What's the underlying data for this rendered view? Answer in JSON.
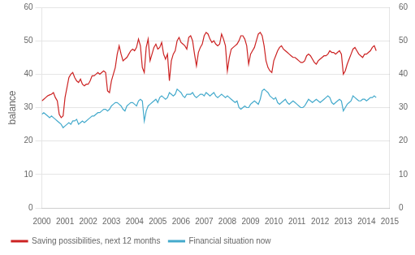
{
  "chart_data": {
    "type": "line",
    "ylabel": "balance",
    "x": [
      2000,
      2000.0833333333333,
      2000.1666666666667,
      2000.25,
      2000.3333333333333,
      2000.4166666666667,
      2000.5,
      2000.5833333333333,
      2000.6666666666667,
      2000.75,
      2000.8333333333333,
      2000.9166666666667,
      2001,
      2001.0833333333333,
      2001.1666666666667,
      2001.25,
      2001.3333333333333,
      2001.4166666666667,
      2001.5,
      2001.5833333333333,
      2001.6666666666667,
      2001.75,
      2001.8333333333333,
      2001.9166666666667,
      2002,
      2002.0833333333333,
      2002.1666666666667,
      2002.25,
      2002.3333333333333,
      2002.4166666666667,
      2002.5,
      2002.5833333333333,
      2002.6666666666667,
      2002.75,
      2002.8333333333333,
      2002.9166666666667,
      2003,
      2003.0833333333333,
      2003.1666666666667,
      2003.25,
      2003.3333333333333,
      2003.4166666666667,
      2003.5,
      2003.5833333333333,
      2003.6666666666667,
      2003.75,
      2003.8333333333333,
      2003.9166666666667,
      2004,
      2004.0833333333333,
      2004.1666666666667,
      2004.25,
      2004.3333333333333,
      2004.4166666666667,
      2004.5,
      2004.5833333333333,
      2004.6666666666667,
      2004.75,
      2004.8333333333333,
      2004.9166666666667,
      2005,
      2005.0833333333333,
      2005.1666666666667,
      2005.25,
      2005.3333333333333,
      2005.4166666666667,
      2005.5,
      2005.5833333333333,
      2005.6666666666667,
      2005.75,
      2005.8333333333333,
      2005.9166666666667,
      2006,
      2006.0833333333333,
      2006.1666666666667,
      2006.25,
      2006.3333333333333,
      2006.4166666666667,
      2006.5,
      2006.5833333333333,
      2006.6666666666667,
      2006.75,
      2006.8333333333333,
      2006.9166666666667,
      2007,
      2007.0833333333333,
      2007.1666666666667,
      2007.25,
      2007.3333333333333,
      2007.4166666666667,
      2007.5,
      2007.5833333333333,
      2007.6666666666667,
      2007.75,
      2007.8333333333333,
      2007.9166666666667,
      2008,
      2008.0833333333333,
      2008.1666666666667,
      2008.25,
      2008.3333333333333,
      2008.4166666666667,
      2008.5,
      2008.5833333333333,
      2008.6666666666667,
      2008.75,
      2008.8333333333333,
      2008.9166666666667,
      2009,
      2009.0833333333333,
      2009.1666666666667,
      2009.25,
      2009.3333333333333,
      2009.4166666666667,
      2009.5,
      2009.5833333333333,
      2009.6666666666667,
      2009.75,
      2009.8333333333333,
      2009.9166666666667,
      2010,
      2010.0833333333333,
      2010.1666666666667,
      2010.25,
      2010.3333333333333,
      2010.4166666666667,
      2010.5,
      2010.5833333333333,
      2010.6666666666667,
      2010.75,
      2010.8333333333333,
      2010.9166666666667,
      2011,
      2011.0833333333333,
      2011.1666666666667,
      2011.25,
      2011.3333333333333,
      2011.4166666666667,
      2011.5,
      2011.5833333333333,
      2011.6666666666667,
      2011.75,
      2011.8333333333333,
      2011.9166666666667,
      2012,
      2012.0833333333333,
      2012.1666666666667,
      2012.25,
      2012.3333333333333,
      2012.4166666666667,
      2012.5,
      2012.5833333333333,
      2012.6666666666667,
      2012.75,
      2012.8333333333333,
      2012.9166666666667,
      2013,
      2013.0833333333333,
      2013.1666666666667,
      2013.25,
      2013.3333333333333,
      2013.4166666666667,
      2013.5,
      2013.5833333333333,
      2013.6666666666667,
      2013.75,
      2013.8333333333333,
      2013.9166666666667,
      2014,
      2014.0833333333333,
      2014.1666666666667,
      2014.25,
      2014.3333333333333,
      2014.4166666666667
    ],
    "series": [
      {
        "name": "Saving possibilities, next 12 months",
        "color": "#cc2222",
        "values": [
          32.0,
          32.5,
          33.0,
          33.5,
          33.8,
          34.0,
          34.5,
          33.0,
          32.0,
          28.0,
          27.0,
          27.5,
          33.0,
          36.0,
          39.0,
          40.0,
          40.5,
          39.0,
          38.0,
          37.5,
          38.5,
          37.0,
          36.5,
          37.0,
          37.0,
          38.0,
          39.5,
          39.5,
          40.0,
          40.5,
          40.0,
          40.5,
          41.0,
          40.5,
          35.0,
          34.5,
          38.0,
          40.0,
          42.0,
          46.0,
          48.5,
          46.0,
          44.0,
          44.5,
          45.0,
          46.0,
          47.0,
          47.5,
          47.0,
          48.0,
          50.5,
          48.5,
          42.0,
          40.5,
          48.0,
          50.5,
          44.0,
          46.0,
          48.0,
          49.0,
          47.5,
          48.0,
          49.5,
          46.0,
          44.5,
          46.0,
          38.0,
          44.0,
          46.0,
          47.0,
          50.0,
          51.0,
          49.5,
          49.0,
          48.5,
          47.5,
          51.0,
          51.5,
          50.0,
          46.0,
          42.5,
          46.5,
          48.0,
          49.0,
          51.5,
          52.5,
          52.0,
          50.5,
          49.5,
          50.0,
          49.0,
          48.5,
          49.0,
          52.0,
          50.5,
          48.5,
          41.0,
          45.0,
          47.5,
          48.0,
          48.5,
          49.0,
          50.0,
          51.5,
          51.5,
          50.5,
          48.5,
          43.0,
          46.0,
          47.0,
          48.0,
          50.0,
          52.0,
          52.5,
          51.5,
          48.5,
          44.0,
          42.0,
          41.0,
          40.5,
          44.0,
          45.5,
          47.0,
          48.0,
          48.5,
          47.5,
          47.0,
          46.5,
          46.0,
          45.5,
          45.0,
          45.0,
          44.5,
          44.0,
          43.5,
          43.5,
          44.0,
          45.5,
          46.0,
          45.5,
          44.5,
          43.5,
          43.0,
          44.0,
          44.5,
          45.0,
          45.5,
          45.5,
          46.0,
          47.0,
          46.5,
          46.5,
          46.0,
          46.5,
          47.0,
          46.0,
          40.0,
          41.0,
          43.0,
          44.5,
          46.0,
          47.5,
          48.0,
          47.0,
          46.0,
          45.5,
          45.0,
          46.0,
          46.0,
          46.5,
          47.0,
          48.0,
          48.5,
          47.0
        ]
      },
      {
        "name": "Financial situation now",
        "color": "#44aacc",
        "values": [
          28.0,
          28.5,
          28.0,
          27.5,
          27.0,
          27.5,
          27.0,
          26.5,
          26.0,
          25.5,
          25.0,
          24.0,
          24.5,
          25.0,
          25.5,
          25.0,
          26.0,
          26.0,
          26.5,
          25.0,
          25.5,
          26.0,
          25.5,
          26.0,
          26.5,
          27.0,
          27.5,
          27.5,
          28.0,
          28.5,
          28.5,
          29.0,
          29.5,
          29.5,
          29.0,
          29.5,
          30.5,
          31.0,
          31.5,
          31.5,
          31.0,
          30.5,
          29.5,
          29.0,
          30.5,
          31.0,
          31.5,
          31.5,
          31.0,
          30.5,
          32.0,
          32.5,
          32.0,
          26.0,
          29.0,
          30.5,
          31.0,
          31.5,
          32.0,
          32.5,
          31.5,
          33.0,
          33.5,
          33.0,
          32.5,
          33.0,
          34.5,
          34.0,
          33.5,
          34.0,
          35.5,
          35.0,
          34.5,
          33.5,
          33.0,
          34.0,
          34.0,
          34.0,
          34.5,
          33.5,
          33.0,
          33.5,
          34.0,
          34.0,
          33.5,
          34.5,
          34.0,
          33.5,
          34.0,
          34.5,
          33.5,
          33.0,
          33.5,
          34.0,
          33.5,
          33.0,
          33.5,
          33.0,
          32.5,
          32.0,
          31.5,
          32.0,
          30.0,
          29.5,
          30.0,
          30.5,
          30.0,
          30.0,
          31.0,
          31.5,
          32.0,
          31.5,
          31.0,
          32.5,
          35.0,
          35.5,
          35.0,
          34.5,
          33.5,
          33.0,
          32.5,
          33.0,
          31.5,
          31.0,
          31.5,
          32.0,
          32.5,
          31.5,
          31.0,
          31.5,
          32.0,
          31.5,
          31.0,
          30.5,
          30.0,
          30.0,
          30.5,
          31.5,
          32.5,
          32.0,
          31.5,
          32.0,
          32.5,
          32.0,
          31.5,
          32.0,
          32.5,
          33.0,
          33.5,
          33.0,
          31.5,
          31.0,
          31.5,
          32.0,
          32.5,
          32.0,
          29.0,
          30.0,
          31.0,
          31.5,
          32.0,
          33.5,
          33.0,
          32.5,
          32.0,
          32.0,
          32.5,
          32.5,
          32.0,
          32.5,
          33.0,
          33.0,
          33.5,
          33.0
        ]
      }
    ],
    "xlim": [
      2000,
      2015
    ],
    "xticks": [
      2000,
      2001,
      2002,
      2003,
      2004,
      2005,
      2006,
      2007,
      2008,
      2009,
      2010,
      2011,
      2012,
      2013,
      2014,
      2015
    ],
    "ylim": [
      0,
      60
    ],
    "yticks": [
      0,
      10,
      20,
      30,
      40,
      50,
      60
    ],
    "y2lim": [
      0,
      60
    ],
    "y2ticks": [
      0,
      10,
      20,
      30,
      40,
      50,
      60
    ],
    "grid": "y",
    "legend": "lower left"
  }
}
